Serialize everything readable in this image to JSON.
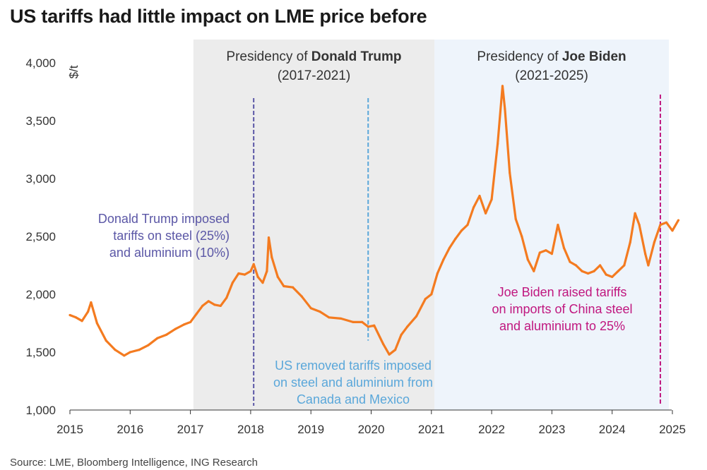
{
  "title": "US tariffs had little impact on LME price before",
  "source": "Source: LME, Bloomberg Intelligence, ING Research",
  "chart_data": {
    "type": "line",
    "ylabel": "$/t",
    "xlabel": "",
    "xlim": [
      2015.0,
      2025.15
    ],
    "ylim": [
      1000,
      4000
    ],
    "y_ticks": [
      "1,000",
      "1,500",
      "2,000",
      "2,500",
      "3,000",
      "3,500",
      "4,000"
    ],
    "y_tick_values": [
      1000,
      1500,
      2000,
      2500,
      3000,
      3500,
      4000
    ],
    "x_ticks": [
      "2015",
      "2016",
      "2017",
      "2018",
      "2019",
      "2020",
      "2021",
      "2022",
      "2023",
      "2024",
      "2025"
    ],
    "x_tick_values": [
      2015,
      2016,
      2017,
      2018,
      2019,
      2020,
      2021,
      2022,
      2023,
      2024,
      2025
    ],
    "grid": false,
    "series": [
      {
        "color": "#f47b20",
        "x": [
          2015.0,
          2015.1,
          2015.2,
          2015.3,
          2015.35,
          2015.45,
          2015.6,
          2015.75,
          2015.9,
          2016.0,
          2016.15,
          2016.3,
          2016.45,
          2016.6,
          2016.75,
          2016.9,
          2017.0,
          2017.1,
          2017.2,
          2017.3,
          2017.4,
          2017.5,
          2017.6,
          2017.7,
          2017.8,
          2017.9,
          2018.0,
          2018.05,
          2018.12,
          2018.2,
          2018.27,
          2018.3,
          2018.35,
          2018.45,
          2018.55,
          2018.7,
          2018.85,
          2019.0,
          2019.15,
          2019.3,
          2019.5,
          2019.7,
          2019.85,
          2019.95,
          2020.05,
          2020.2,
          2020.3,
          2020.4,
          2020.5,
          2020.6,
          2020.75,
          2020.9,
          2021.0,
          2021.1,
          2021.2,
          2021.3,
          2021.4,
          2021.5,
          2021.6,
          2021.7,
          2021.8,
          2021.9,
          2022.0,
          2022.1,
          2022.18,
          2022.22,
          2022.3,
          2022.4,
          2022.5,
          2022.6,
          2022.7,
          2022.8,
          2022.9,
          2023.0,
          2023.1,
          2023.2,
          2023.3,
          2023.4,
          2023.5,
          2023.6,
          2023.7,
          2023.8,
          2023.9,
          2024.0,
          2024.1,
          2024.2,
          2024.3,
          2024.38,
          2024.45,
          2024.55,
          2024.6,
          2024.7,
          2024.8,
          2024.9,
          2025.0,
          2025.1
        ],
        "values": [
          1820,
          1800,
          1770,
          1850,
          1930,
          1750,
          1600,
          1520,
          1470,
          1500,
          1520,
          1560,
          1620,
          1650,
          1700,
          1740,
          1760,
          1830,
          1900,
          1940,
          1910,
          1900,
          1970,
          2100,
          2180,
          2170,
          2200,
          2260,
          2150,
          2100,
          2200,
          2490,
          2320,
          2150,
          2070,
          2060,
          1980,
          1880,
          1850,
          1800,
          1790,
          1760,
          1760,
          1720,
          1730,
          1570,
          1480,
          1520,
          1650,
          1720,
          1810,
          1960,
          2000,
          2180,
          2300,
          2400,
          2480,
          2550,
          2600,
          2750,
          2850,
          2700,
          2820,
          3300,
          3800,
          3600,
          3050,
          2650,
          2500,
          2300,
          2200,
          2360,
          2380,
          2350,
          2600,
          2400,
          2280,
          2250,
          2200,
          2180,
          2200,
          2250,
          2170,
          2150,
          2200,
          2250,
          2450,
          2700,
          2600,
          2350,
          2250,
          2450,
          2600,
          2620,
          2550,
          2640
        ]
      }
    ],
    "bands": [
      {
        "label_prefix": "Presidency of ",
        "label_bold": "Donald Trump",
        "label_years": "(2017-2021)",
        "from": 2017.05,
        "to": 2021.05,
        "color": "#ececec"
      },
      {
        "label_prefix": "Presidency of ",
        "label_bold": "Joe Biden",
        "label_years": "(2021-2025)",
        "from": 2021.05,
        "to": 2025.15,
        "color": "#eef4fb"
      }
    ],
    "events": [
      {
        "x": 2018.05,
        "color": "#5b57a6",
        "lines": [
          "Donald Trump imposed",
          "tariffs on steel (25%)",
          "and aluminium (10%)"
        ],
        "anchor": "end"
      },
      {
        "x": 2019.95,
        "color": "#5aa7da",
        "lines": [
          "US removed tariffs imposed",
          "on steel and aluminium from",
          "Canada and Mexico"
        ],
        "anchor": "middle"
      },
      {
        "x": 2024.8,
        "color": "#c0177f",
        "lines": [
          "Joe Biden raised tariffs",
          "on imports of China steel",
          "and aluminium to 25%"
        ],
        "anchor": "middle"
      }
    ]
  }
}
